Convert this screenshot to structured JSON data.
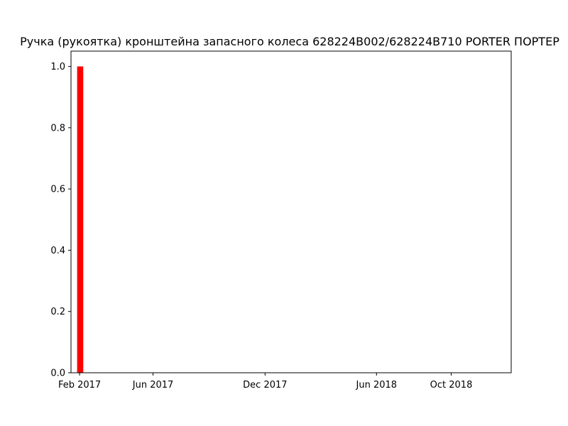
{
  "chart_data": {
    "type": "bar",
    "title": "Ручка (рукоятка) кронштейна запасного колеса 628224B002/628224B710 PORTER ПОРТЕР",
    "xlabel": "",
    "ylabel": "",
    "x_axis_type": "date",
    "xlim": [
      "2017-01-18",
      "2019-01-07"
    ],
    "ylim": [
      0,
      1.05
    ],
    "x_ticks": [
      {
        "date": "2017-02-01",
        "label": "Feb 2017"
      },
      {
        "date": "2017-06-01",
        "label": "Jun 2017"
      },
      {
        "date": "2017-12-01",
        "label": "Dec 2017"
      },
      {
        "date": "2018-06-01",
        "label": "Jun 2018"
      },
      {
        "date": "2018-10-01",
        "label": "Oct 2018"
      }
    ],
    "y_ticks": [
      {
        "value": 0.0,
        "label": "0.0"
      },
      {
        "value": 0.2,
        "label": "0.2"
      },
      {
        "value": 0.4,
        "label": "0.4"
      },
      {
        "value": 0.6,
        "label": "0.6"
      },
      {
        "value": 0.8,
        "label": "0.8"
      },
      {
        "value": 1.0,
        "label": "1.0"
      }
    ],
    "bars": [
      {
        "start": "2017-01-28",
        "end": "2017-02-07",
        "value": 1
      }
    ],
    "bar_color": "#ff0000",
    "grid": false,
    "legend": "none"
  }
}
